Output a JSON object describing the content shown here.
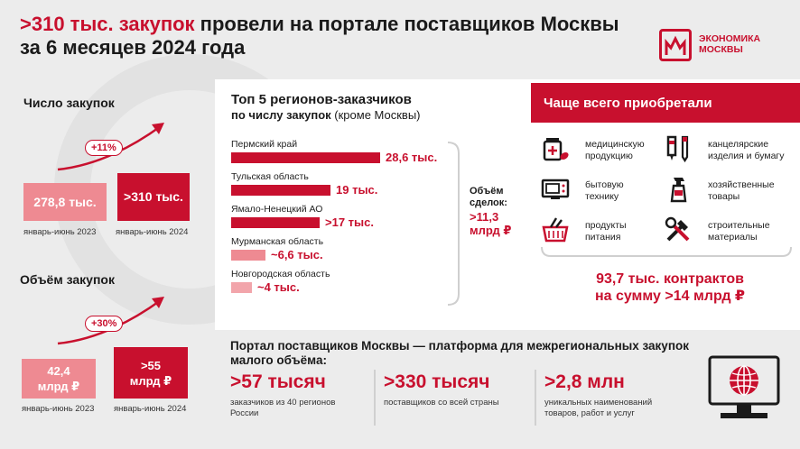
{
  "title": {
    "highlight": ">310 тыс. закупок",
    "rest": " провели на портале поставщиков Москвы",
    "line2": "за 6 месяцев 2024 года"
  },
  "logo": {
    "line1": "ЭКОНОМИКА",
    "line2": "МОСКВЫ"
  },
  "purchases_count": {
    "heading": "Число закупок",
    "growth": "+11%",
    "prev_value": "278,8 тыс.",
    "prev_label": "январь-июнь 2023",
    "curr_value": ">310 тыс.",
    "curr_label": "январь-июнь 2024"
  },
  "purchases_volume": {
    "heading": "Объём закупок",
    "growth": "+30%",
    "prev_value_l1": "42,4",
    "prev_value_l2": "млрд ₽",
    "prev_label": "январь-июнь 2023",
    "curr_value_l1": ">55",
    "curr_value_l2": "млрд ₽",
    "curr_label": "январь-июнь 2024"
  },
  "chart_data": {
    "type": "bar",
    "title": "Топ 5 регионов-заказчиков",
    "subtitle_bold": "по числу закупок",
    "subtitle_normal": " (кроме Москвы)",
    "categories": [
      "Пермский край",
      "Тульская область",
      "Ямало-Ненецкий АО",
      "Мурманская область",
      "Новгородская область"
    ],
    "values": [
      28.6,
      19,
      17,
      6.6,
      4
    ],
    "value_labels": [
      "28,6 тыс.",
      "19 тыс.",
      ">17 тыс.",
      "~6,6 тыс.",
      "~4 тыс."
    ],
    "colors": [
      "#c8102e",
      "#c8102e",
      "#c8102e",
      "#ee8a92",
      "#f2a5ab"
    ],
    "xlim": [
      0,
      28.6
    ]
  },
  "deal_volume": {
    "label_l1": "Объём",
    "label_l2": "сделок:",
    "value_l1": ">11,3",
    "value_l2": "млрд ₽"
  },
  "often_bought": {
    "heading": "Чаще всего приобретали",
    "items": [
      {
        "icon": "medicine-icon",
        "l1": "медицинскую",
        "l2": "продукцию"
      },
      {
        "icon": "stationery-icon",
        "l1": "канцелярские",
        "l2": "изделия и бумагу"
      },
      {
        "icon": "appliance-icon",
        "l1": "бытовую",
        "l2": "технику"
      },
      {
        "icon": "spray-bottle-icon",
        "l1": "хозяйственные",
        "l2": "товары"
      },
      {
        "icon": "grocery-basket-icon",
        "l1": "продукты",
        "l2": "питания"
      },
      {
        "icon": "tools-icon",
        "l1": "строительные",
        "l2": "материалы"
      }
    ],
    "contracts_l1": "93,7 тыс. контрактов",
    "contracts_l2": "на сумму >14 млрд ₽"
  },
  "platform": {
    "heading_l1": "Портал поставщиков Москвы — платформа для межрегиональных закупок",
    "heading_l2": "малого объёма:",
    "stats": [
      {
        "value": ">57 тысяч",
        "d1": "заказчиков из 40 регионов",
        "d2": "России"
      },
      {
        "value": ">330 тысяч",
        "d1": "поставщиков со всей страны",
        "d2": ""
      },
      {
        "value": ">2,8 млн",
        "d1": "уникальных наименований",
        "d2": "товаров, работ и услуг"
      }
    ]
  }
}
